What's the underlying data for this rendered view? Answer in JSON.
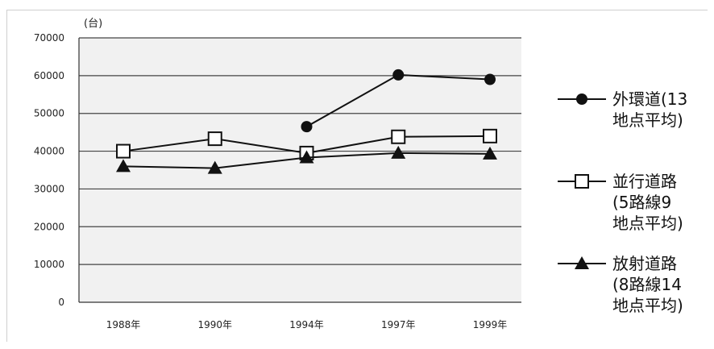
{
  "chart_data": {
    "type": "line",
    "unit_label": "(台)",
    "categories": [
      "1988年",
      "1990年",
      "1994年",
      "1997年",
      "1999年"
    ],
    "ylim": [
      0,
      70000
    ],
    "yticks": [
      "70000",
      "60000",
      "50000",
      "40000",
      "30000",
      "20000",
      "10000",
      "0"
    ],
    "grid": true,
    "series": [
      {
        "name": "外環道(13\n地点平均)",
        "marker": "circle-filled",
        "values": [
          null,
          null,
          46500,
          60200,
          59000
        ]
      },
      {
        "name": "並行道路\n(5路線9\n地点平均)",
        "marker": "square-open",
        "values": [
          40000,
          43300,
          39500,
          43800,
          44000
        ]
      },
      {
        "name": "放射道路\n(8路線14\n地点平均)",
        "marker": "triangle-filled",
        "values": [
          36000,
          35500,
          38300,
          39500,
          39300
        ]
      }
    ],
    "legend_position": "right"
  }
}
